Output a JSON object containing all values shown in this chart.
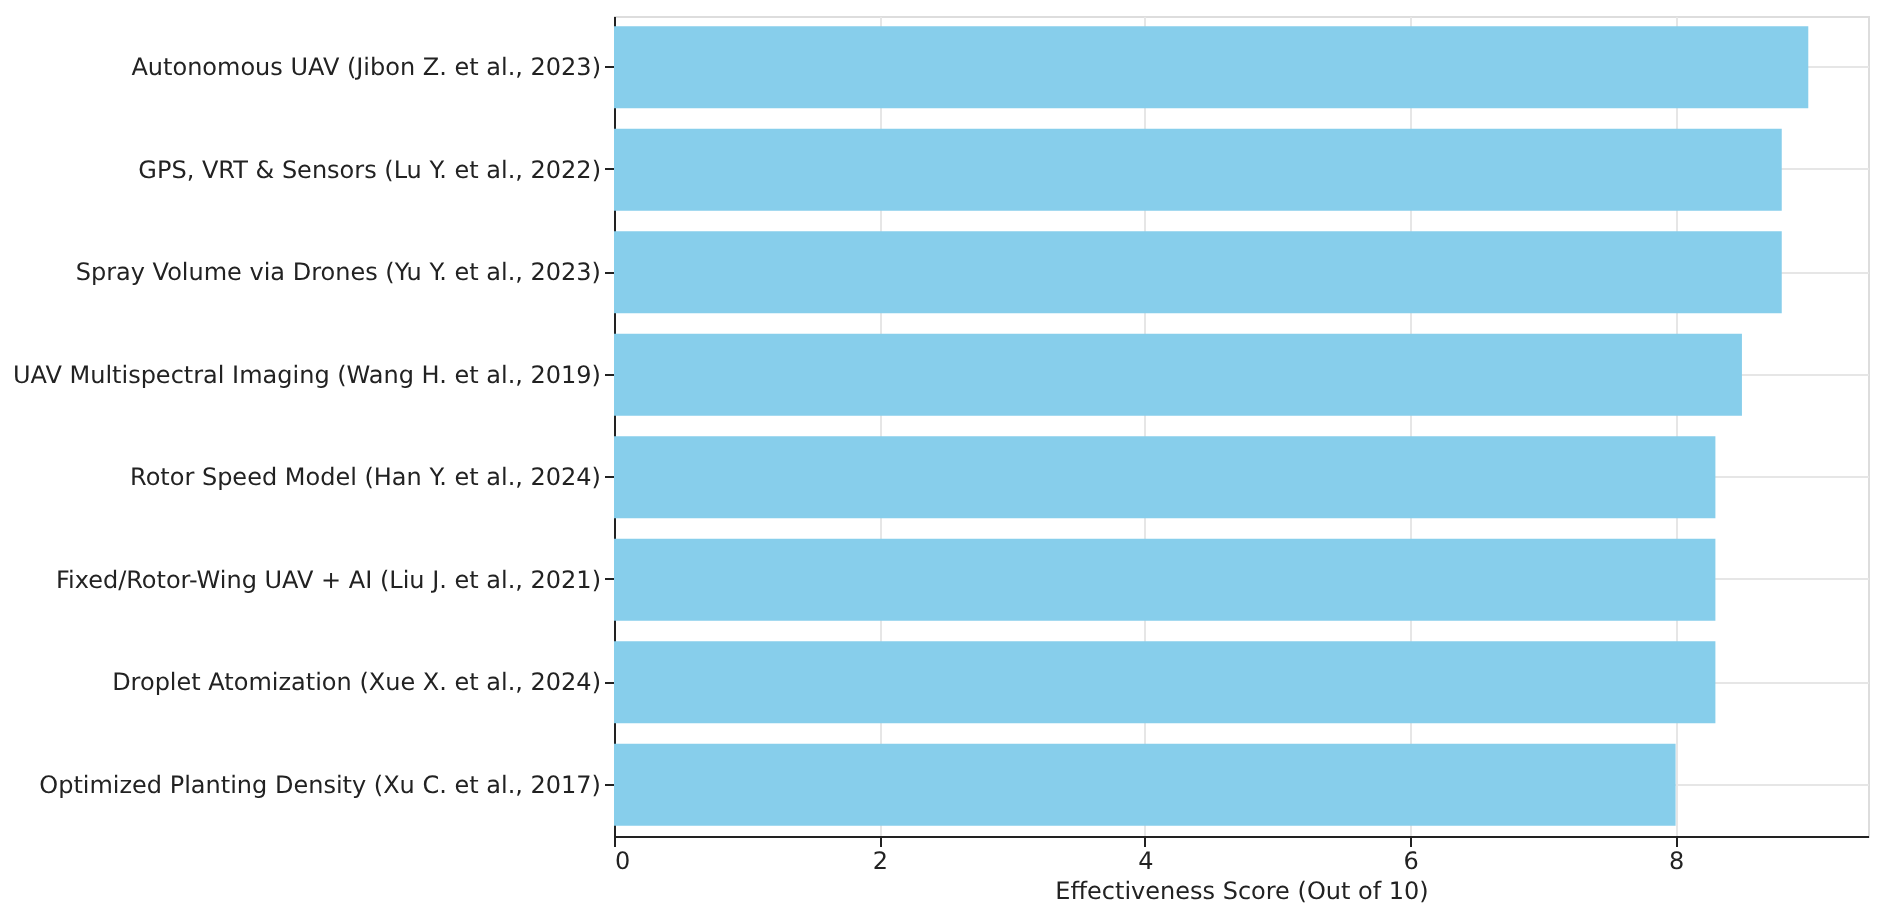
{
  "chart_data": {
    "type": "bar",
    "orientation": "horizontal",
    "categories": [
      "Autonomous UAV (Jibon Z. et al., 2023)",
      "GPS, VRT & Sensors (Lu Y. et al., 2022)",
      "Spray Volume via Drones (Yu Y. et al., 2023)",
      "UAV Multispectral Imaging (Wang H. et al., 2019)",
      "Rotor Speed Model (Han Y. et al., 2024)",
      "Fixed/Rotor-Wing UAV + AI (Liu J. et al., 2021)",
      "Droplet Atomization (Xue X. et al., 2024)",
      "Optimized Planting Density (Xu C. et al., 2017)"
    ],
    "values": [
      9.0,
      8.8,
      8.8,
      8.5,
      8.3,
      8.3,
      8.3,
      8.0
    ],
    "color": "#87ceeb",
    "xlabel": "Effectiveness Score (Out of 10)",
    "xlim": [
      0,
      9.45
    ],
    "xticks": [
      0,
      2,
      4,
      6,
      8
    ],
    "grid": true
  }
}
